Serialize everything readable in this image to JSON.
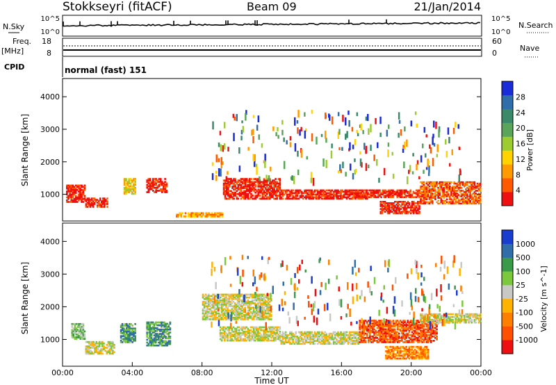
{
  "header": {
    "station": "Stokkseyri (fitACF)",
    "beam": "Beam 09",
    "date": "21/Jan/2014"
  },
  "colors": {
    "power": [
      "#1a2bd8",
      "#2f6ea8",
      "#3a8a6a",
      "#5aa55a",
      "#9ccc30",
      "#ffd200",
      "#ff9a00",
      "#ff5a00",
      "#ee1010"
    ],
    "velocity": [
      "#1a3dd0",
      "#2f6ea8",
      "#3a9a4a",
      "#7cc83c",
      "#c8c8c4",
      "#ffb200",
      "#ff8000",
      "#ff5000",
      "#ee1010"
    ]
  },
  "panels": {
    "nsky_label": "N.Sky",
    "nsearch_label": "N.Search",
    "nsky_ticks": [
      "10^5",
      "10^0"
    ],
    "freq_label": "Freq.",
    "freq_unit": "[MHz]",
    "freq_ticks": [
      "18",
      "8"
    ],
    "nave_label": "Nave",
    "nave_ticks": [
      "60",
      "0"
    ],
    "cpid_label": "CPID",
    "cpid_text": "normal (fast) 151"
  },
  "chart_data": [
    {
      "type": "heatmap",
      "title": "Power",
      "colorbar_label": "Power [dB]",
      "colorbar_ticks": [
        "28",
        "24",
        "20",
        "16",
        "12",
        "8",
        "4"
      ],
      "ylabel": "Slant Range [km]",
      "yticks": [
        "4000",
        "3000",
        "2000",
        "1000"
      ],
      "ylim": [
        180,
        4560
      ],
      "xlim": [
        0,
        24
      ],
      "bands": [
        {
          "t0": 0.2,
          "t1": 1.3,
          "r0": 750,
          "r1": 1300,
          "level": 8
        },
        {
          "t0": 1.3,
          "t1": 2.6,
          "r0": 600,
          "r1": 900,
          "level": 8
        },
        {
          "t0": 3.5,
          "t1": 4.2,
          "r0": 1000,
          "r1": 1500,
          "level": 5
        },
        {
          "t0": 4.8,
          "t1": 6.0,
          "r0": 1050,
          "r1": 1500,
          "level": 8
        },
        {
          "t0": 6.5,
          "t1": 9.2,
          "r0": 300,
          "r1": 450,
          "level": 6
        },
        {
          "t0": 9.2,
          "t1": 12.5,
          "r0": 850,
          "r1": 1500,
          "level": 8
        },
        {
          "t0": 12.5,
          "t1": 17.5,
          "r0": 850,
          "r1": 1150,
          "level": 8
        },
        {
          "t0": 17.3,
          "t1": 20.5,
          "r0": 900,
          "r1": 1150,
          "level": 8
        },
        {
          "t0": 18.2,
          "t1": 20.5,
          "r0": 400,
          "r1": 800,
          "level": 8
        },
        {
          "t0": 20.5,
          "t1": 24.0,
          "r0": 700,
          "r1": 1400,
          "level": 7
        }
      ]
    },
    {
      "type": "heatmap",
      "title": "Velocity",
      "colorbar_label": "Velocity [m s^-1]",
      "colorbar_ticks": [
        "1000",
        "500",
        "100",
        "25",
        "-25",
        "-100",
        "-500",
        "-1000"
      ],
      "ylabel": "Slant Range [km]",
      "yticks": [
        "4000",
        "3000",
        "2000",
        "1000"
      ],
      "ylim": [
        180,
        4560
      ],
      "xlim": [
        0,
        24
      ],
      "bands": [
        {
          "t0": 0.5,
          "t1": 1.3,
          "r0": 1000,
          "r1": 1500,
          "level": 3
        },
        {
          "t0": 1.3,
          "t1": 3.0,
          "r0": 550,
          "r1": 950,
          "level": 4
        },
        {
          "t0": 3.3,
          "t1": 4.2,
          "r0": 900,
          "r1": 1500,
          "level": 2
        },
        {
          "t0": 4.8,
          "t1": 6.2,
          "r0": 800,
          "r1": 1550,
          "level": 2
        },
        {
          "t0": 8.0,
          "t1": 12.0,
          "r0": 1600,
          "r1": 2400,
          "level": 4
        },
        {
          "t0": 9.0,
          "t1": 12.5,
          "r0": 950,
          "r1": 1400,
          "level": 4
        },
        {
          "t0": 12.5,
          "t1": 17.0,
          "r0": 850,
          "r1": 1250,
          "level": 4
        },
        {
          "t0": 17.0,
          "t1": 21.5,
          "r0": 900,
          "r1": 1600,
          "level": 7
        },
        {
          "t0": 18.5,
          "t1": 21.0,
          "r0": 400,
          "r1": 800,
          "level": 6
        },
        {
          "t0": 20.5,
          "t1": 24.0,
          "r0": 1500,
          "r1": 1800,
          "level": 4
        }
      ]
    }
  ],
  "xaxis": {
    "label": "Time UT",
    "ticks": [
      "00:00",
      "04:00",
      "08:00",
      "12:00",
      "16:00",
      "20:00",
      "00:00"
    ]
  }
}
